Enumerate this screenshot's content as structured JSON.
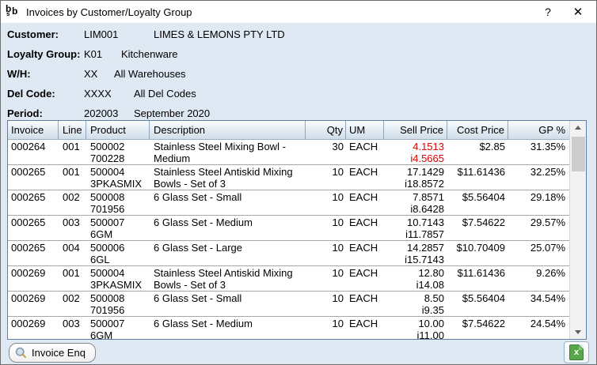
{
  "window": {
    "title": "Invoices by Customer/Loyalty Group",
    "help_label": "?",
    "close_label": "✕",
    "logo": {
      "b1": "b",
      "b2": "b",
      "s": "s"
    }
  },
  "filters": [
    {
      "label": "Customer:",
      "code": "LIM001",
      "desc": "LIMES & LEMONS PTY LTD"
    },
    {
      "label": "Loyalty Group:",
      "code": "K01",
      "desc": "Kitchenware"
    },
    {
      "label": "W/H:",
      "code": "XX",
      "desc": "All Warehouses"
    },
    {
      "label": "Del Code:",
      "code": "XXXX",
      "desc": "All Del Codes"
    },
    {
      "label": "Period:",
      "code": "202003",
      "desc": "September 2020"
    }
  ],
  "table": {
    "columns": [
      "Invoice",
      "Line",
      "Product",
      "Description",
      "Qty",
      "UM",
      "Sell Price",
      "Cost Price",
      "GP %"
    ],
    "rows": [
      {
        "invoice": "000264",
        "line": "001",
        "product1": "500002",
        "product2": "700228",
        "desc1": "Stainless Steel Mixing Bowl -",
        "desc2": "Medium",
        "qty": "30",
        "um": "EACH",
        "sell1": "4.1513",
        "sell2": "i4.5665",
        "sell_red": true,
        "cost": "$2.85",
        "gp": "31.35%"
      },
      {
        "invoice": "000265",
        "line": "001",
        "product1": "500004",
        "product2": "3PKASMIX",
        "desc1": "Stainless Steel Antiskid Mixing",
        "desc2": "Bowls - Set of 3",
        "qty": "10",
        "um": "EACH",
        "sell1": "17.1429",
        "sell2": "i18.8572",
        "sell_red": false,
        "cost": "$11.61436",
        "gp": "32.25%"
      },
      {
        "invoice": "000265",
        "line": "002",
        "product1": "500008",
        "product2": "701956",
        "desc1": "6 Glass Set - Small",
        "desc2": "",
        "qty": "10",
        "um": "EACH",
        "sell1": "7.8571",
        "sell2": "i8.6428",
        "sell_red": false,
        "cost": "$5.56404",
        "gp": "29.18%"
      },
      {
        "invoice": "000265",
        "line": "003",
        "product1": "500007",
        "product2": "6GM",
        "desc1": "6 Glass Set - Medium",
        "desc2": "",
        "qty": "10",
        "um": "EACH",
        "sell1": "10.7143",
        "sell2": "i11.7857",
        "sell_red": false,
        "cost": "$7.54622",
        "gp": "29.57%"
      },
      {
        "invoice": "000265",
        "line": "004",
        "product1": "500006",
        "product2": "6GL",
        "desc1": "6 Glass Set - Large",
        "desc2": "",
        "qty": "10",
        "um": "EACH",
        "sell1": "14.2857",
        "sell2": "i15.7143",
        "sell_red": false,
        "cost": "$10.70409",
        "gp": "25.07%"
      },
      {
        "invoice": "000269",
        "line": "001",
        "product1": "500004",
        "product2": "3PKASMIX",
        "desc1": "Stainless Steel Antiskid Mixing",
        "desc2": "Bowls - Set of 3",
        "qty": "10",
        "um": "EACH",
        "sell1": "12.80",
        "sell2": "i14.08",
        "sell_red": false,
        "cost": "$11.61436",
        "gp": "9.26%"
      },
      {
        "invoice": "000269",
        "line": "002",
        "product1": "500008",
        "product2": "701956",
        "desc1": "6 Glass Set - Small",
        "desc2": "",
        "qty": "10",
        "um": "EACH",
        "sell1": "8.50",
        "sell2": "i9.35",
        "sell_red": false,
        "cost": "$5.56404",
        "gp": "34.54%"
      },
      {
        "invoice": "000269",
        "line": "003",
        "product1": "500007",
        "product2": "6GM",
        "desc1": "6 Glass Set - Medium",
        "desc2": "",
        "qty": "10",
        "um": "EACH",
        "sell1": "10.00",
        "sell2": "i11.00",
        "sell_red": false,
        "cost": "$7.54622",
        "gp": "24.54%"
      }
    ]
  },
  "footer": {
    "invoice_enq_label": "Invoice Enq"
  },
  "colors": {
    "dialog-bg": "#dfe9f3",
    "red-price": "#dd0000",
    "excel-green": "#57a64a"
  }
}
